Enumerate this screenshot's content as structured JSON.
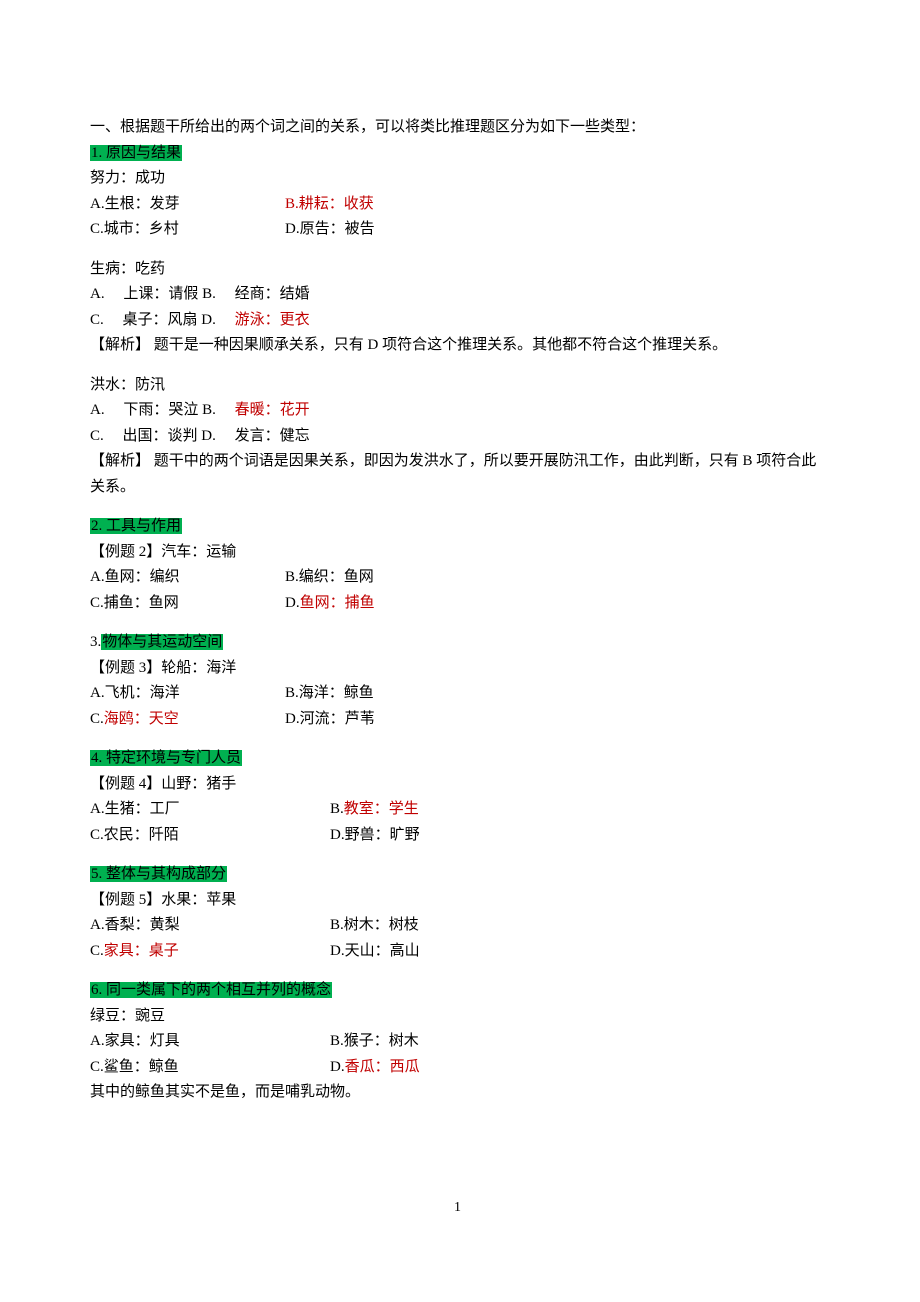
{
  "intro": "一、根据题干所给出的两个词之间的关系，可以将类比推理题区分为如下一些类型：",
  "sections": {
    "s1": {
      "heading": "1. 原因与结果",
      "q1": {
        "prompt": "努力：成功",
        "optA": "A.生根：发芽",
        "optB": "B.耕耘：收获",
        "optC": "C.城市：乡村",
        "optD": "D.原告：被告"
      },
      "q2": {
        "prompt": "生病：吃药",
        "optA": "A.　 上课：请假 B.　 经商：结婚",
        "optC_prefix": "C.　 桌子：风扇 D.　 ",
        "optD_answer": "游泳：更衣",
        "analysis": "【解析】  题干是一种因果顺承关系，只有 D 项符合这个推理关系。其他都不符合这个推理关系。"
      },
      "q3": {
        "prompt": "洪水：防汛",
        "optA_prefix": "A.　 下雨：哭泣 B.　 ",
        "optB_answer": "春暖：花开",
        "optC": "C.　 出国：谈判 D.　 发言：健忘",
        "analysis": "【解析】  题干中的两个词语是因果关系，即因为发洪水了，所以要开展防汛工作，由此判断，只有 B 项符合此关系。"
      }
    },
    "s2": {
      "heading": "2. 工具与作用",
      "q1": {
        "prompt": "【例题 2】汽车：运输",
        "optA": "A.鱼网：编织",
        "optB": "B.编织：鱼网",
        "optC": "C.捕鱼：鱼网",
        "optD_prefix": "D.",
        "optD_answer": "鱼网：捕鱼"
      }
    },
    "s3": {
      "heading_prefix": "3.",
      "heading": "物体与其运动空间",
      "q1": {
        "prompt": "【例题 3】轮船：海洋",
        "optA": "A.飞机：海洋",
        "optB": "B.海洋：鲸鱼",
        "optC_prefix": "C.",
        "optC_answer": "海鸥：天空",
        "optD": "D.河流：芦苇"
      }
    },
    "s4": {
      "heading": "4. 特定环境与专门人员",
      "q1": {
        "prompt": "【例题 4】山野：猪手",
        "optA": "A.生猪：工厂",
        "optB_prefix": "B.",
        "optB_answer": "教室：学生",
        "optC": "C.农民：阡陌",
        "optD": "D.野兽：旷野"
      }
    },
    "s5": {
      "heading": "5. 整体与其构成部分",
      "q1": {
        "prompt": "【例题 5】水果：苹果",
        "optA": "A.香梨：黄梨",
        "optB": "B.树木：树枝",
        "optC_prefix": "C.",
        "optC_answer": "家具：桌子",
        "optD": "D.天山：高山"
      }
    },
    "s6": {
      "heading": "6. 同一类属下的两个相互并列的概念",
      "q1": {
        "prompt": "绿豆：豌豆",
        "optA": "A.家具：灯具",
        "optB": "B.猴子：树木",
        "optC": "C.鲨鱼：鲸鱼",
        "optD_prefix": "D.",
        "optD_answer": "香瓜：西瓜",
        "note": "其中的鲸鱼其实不是鱼，而是哺乳动物。"
      }
    }
  },
  "pageNumber": "1"
}
